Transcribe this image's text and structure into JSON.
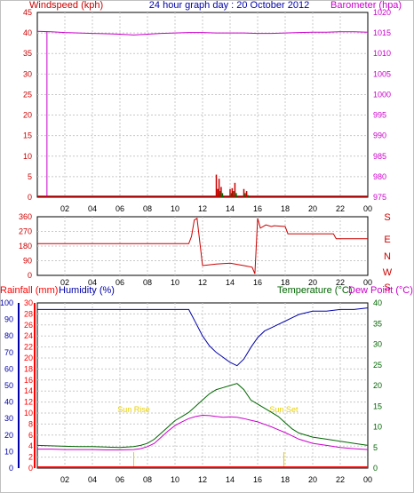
{
  "header": {
    "left_label": "Windspeed (kph)",
    "title": "24 hour graph day : 20 October 2012",
    "right_label": "Barometer (hpa)"
  },
  "colors": {
    "windspeed": "#cc0000",
    "barometer": "#cc00cc",
    "direction": "#cc0000",
    "rainfall": "#ff0000",
    "humidity": "#0000aa",
    "temperature": "#006600",
    "dewpoint": "#cc00cc",
    "sun": "#e8d000",
    "grid": "#c8c8c8",
    "frame": "#000000"
  },
  "chart_data": [
    {
      "type": "line",
      "id": "wind-baro",
      "xlabel": "",
      "x_ticks": [
        "02",
        "04",
        "06",
        "08",
        "10",
        "12",
        "14",
        "16",
        "18",
        "20",
        "22",
        "00"
      ],
      "xlim_hours": [
        0,
        24
      ],
      "y_left": {
        "label": "Windspeed (kph)",
        "min": 0,
        "max": 45,
        "ticks": [
          0,
          5,
          10,
          15,
          20,
          25,
          30,
          35,
          40,
          45
        ]
      },
      "y_right": {
        "label": "Barometer (hpa)",
        "min": 975,
        "max": 1020,
        "ticks": [
          975,
          980,
          985,
          990,
          995,
          1000,
          1005,
          1010,
          1015,
          1020
        ]
      },
      "barometer": {
        "hours": [
          0,
          1,
          2,
          3,
          4,
          5,
          6,
          7,
          8,
          9,
          10,
          11,
          12,
          13,
          14,
          15,
          16,
          17,
          18,
          19,
          20,
          21,
          22,
          23,
          24
        ],
        "values": [
          1015.4,
          1015.3,
          1015.1,
          1015.0,
          1014.9,
          1014.8,
          1014.7,
          1014.5,
          1014.7,
          1014.9,
          1015.0,
          1015.1,
          1015.1,
          1015.0,
          1015.0,
          1015.0,
          1014.9,
          1014.9,
          1015.0,
          1015.1,
          1015.2,
          1015.2,
          1015.3,
          1015.3,
          1015.2
        ]
      },
      "wind_gusts": {
        "hours": [
          13.0,
          13.1,
          13.2,
          13.35,
          14.0,
          14.15,
          14.35,
          15.0,
          15.2
        ],
        "values": [
          5.5,
          2.0,
          4.5,
          2.5,
          2.0,
          2.2,
          3.5,
          2.0,
          1.5
        ],
        "avg_values": [
          2.0,
          1.0,
          1.5,
          1.0,
          1.0,
          1.5,
          1.0,
          1.0,
          0.5
        ]
      },
      "vertical_marker_hour": 0.7
    },
    {
      "type": "line",
      "id": "wind-direction",
      "x_ticks": [
        "02",
        "04",
        "06",
        "08",
        "10",
        "12",
        "14",
        "16",
        "18",
        "20",
        "22",
        "00"
      ],
      "xlim_hours": [
        0,
        24
      ],
      "y_left": {
        "min": 0,
        "max": 360,
        "ticks": [
          0,
          90,
          180,
          270,
          360
        ]
      },
      "y_right_labels": [
        "S",
        "E",
        "N",
        "W",
        "S"
      ],
      "hours": [
        0,
        11,
        11.2,
        11.4,
        11.6,
        12,
        13,
        14,
        15,
        15.6,
        15.8,
        16,
        16.2,
        16.6,
        17,
        17.2,
        18,
        18.2,
        21.5,
        21.7,
        24
      ],
      "values": [
        195,
        195,
        240,
        340,
        350,
        60,
        70,
        75,
        60,
        50,
        10,
        350,
        290,
        310,
        300,
        305,
        300,
        255,
        255,
        225,
        225
      ]
    },
    {
      "type": "line",
      "id": "temp-hum-rain",
      "x_ticks": [
        "02",
        "04",
        "06",
        "08",
        "10",
        "12",
        "14",
        "16",
        "18",
        "20",
        "22",
        "00"
      ],
      "xlim_hours": [
        0,
        24
      ],
      "y_left_rain": {
        "label": "Rainfall (mm)",
        "min": 0,
        "max": 30,
        "ticks": [
          0,
          2,
          4,
          6,
          8,
          10,
          12,
          14,
          16,
          18,
          20,
          22,
          24,
          26,
          28,
          30
        ]
      },
      "y_left_humidity": {
        "label": "Humidity (%)",
        "min": 0,
        "max": 100,
        "ticks": [
          0,
          10,
          20,
          30,
          40,
          50,
          60,
          70,
          80,
          90,
          100
        ]
      },
      "y_right": {
        "label_temperature": "Temperature (°C)",
        "label_dewpoint": "Dew Point (°C)",
        "min": 0,
        "max": 40,
        "ticks": [
          0,
          5,
          10,
          15,
          20,
          25,
          30,
          35,
          40
        ]
      },
      "hours": [
        0,
        1,
        2,
        3,
        4,
        5,
        6,
        7,
        7.5,
        8,
        8.5,
        9,
        9.5,
        10,
        10.5,
        11,
        11.5,
        12,
        12.5,
        13,
        13.5,
        14,
        14.5,
        15,
        15.5,
        16,
        16.5,
        17,
        17.5,
        18,
        18.5,
        19,
        20,
        21,
        22,
        23,
        24
      ],
      "humidity": [
        96,
        96,
        96,
        96,
        96,
        96,
        96,
        96,
        96,
        96,
        96,
        96,
        96,
        96,
        96,
        96,
        88,
        80,
        74,
        70,
        67,
        64,
        62,
        66,
        73,
        79,
        83,
        85,
        87,
        89,
        91,
        93,
        95,
        95,
        96,
        96,
        97
      ],
      "temperature": [
        5.5,
        5.4,
        5.3,
        5.2,
        5.2,
        5.1,
        5.0,
        5.2,
        5.5,
        6.0,
        7.0,
        8.5,
        10.0,
        11.5,
        12.5,
        13.5,
        15.0,
        16.5,
        18.0,
        19.0,
        19.5,
        20.0,
        20.5,
        19.0,
        16.5,
        15.5,
        14.5,
        13.5,
        12.5,
        11.0,
        9.5,
        8.5,
        7.5,
        7.0,
        6.5,
        6.0,
        5.5
      ],
      "dewpoint": [
        4.6,
        4.6,
        4.5,
        4.5,
        4.5,
        4.4,
        4.4,
        4.5,
        4.7,
        5.2,
        6.0,
        7.5,
        9.0,
        10.3,
        11.2,
        12.0,
        12.5,
        12.8,
        12.7,
        12.5,
        12.3,
        12.4,
        12.3,
        12.0,
        11.6,
        11.2,
        10.6,
        10.0,
        9.3,
        8.6,
        7.8,
        7.0,
        6.0,
        5.5,
        5.0,
        4.7,
        4.5
      ],
      "rainfall": [
        0,
        0,
        0,
        0,
        0,
        0,
        0,
        0,
        0,
        0,
        0,
        0,
        0,
        0,
        0,
        0,
        0,
        0,
        0,
        0,
        0,
        0,
        0,
        0,
        0,
        0,
        0,
        0,
        0,
        0,
        0,
        0,
        0,
        0,
        0,
        0,
        0
      ],
      "sunrise": {
        "label": "Sun Rise",
        "hour": 7.0
      },
      "sunset": {
        "label": "Sun Set",
        "hour": 17.9
      }
    }
  ]
}
